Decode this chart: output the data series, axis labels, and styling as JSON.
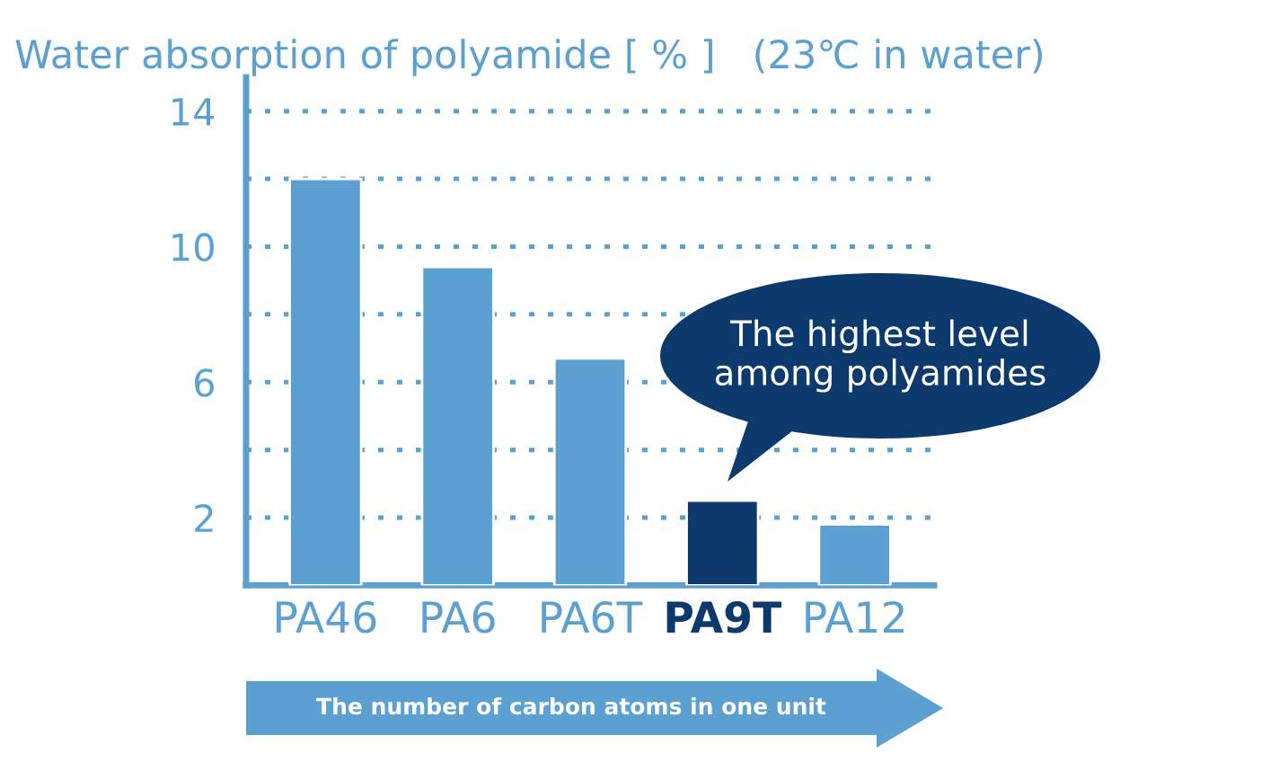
{
  "chart_data": {
    "type": "bar",
    "title": "Water absorption of polyamide [ % ]   (23℃ in water)",
    "categories": [
      "PA46",
      "PA6",
      "PA6T",
      "PA9T",
      "PA12"
    ],
    "values": [
      12,
      9.4,
      6.7,
      2.5,
      1.8
    ],
    "colors": [
      "#5ba0d0",
      "#5ba0d0",
      "#5ba0d0",
      "#0d3a6c",
      "#5ba0d0"
    ],
    "ylim": [
      0,
      15
    ],
    "yticks": [
      2,
      {
        "value": 4,
        "label": null
      },
      6,
      {
        "value": 8,
        "label": null
      },
      10,
      {
        "value": 12,
        "label": null
      },
      14
    ],
    "grid": "y",
    "annotations": [
      "The highest level\namong polyamides",
      "The number of carbon atoms in one unit"
    ]
  }
}
